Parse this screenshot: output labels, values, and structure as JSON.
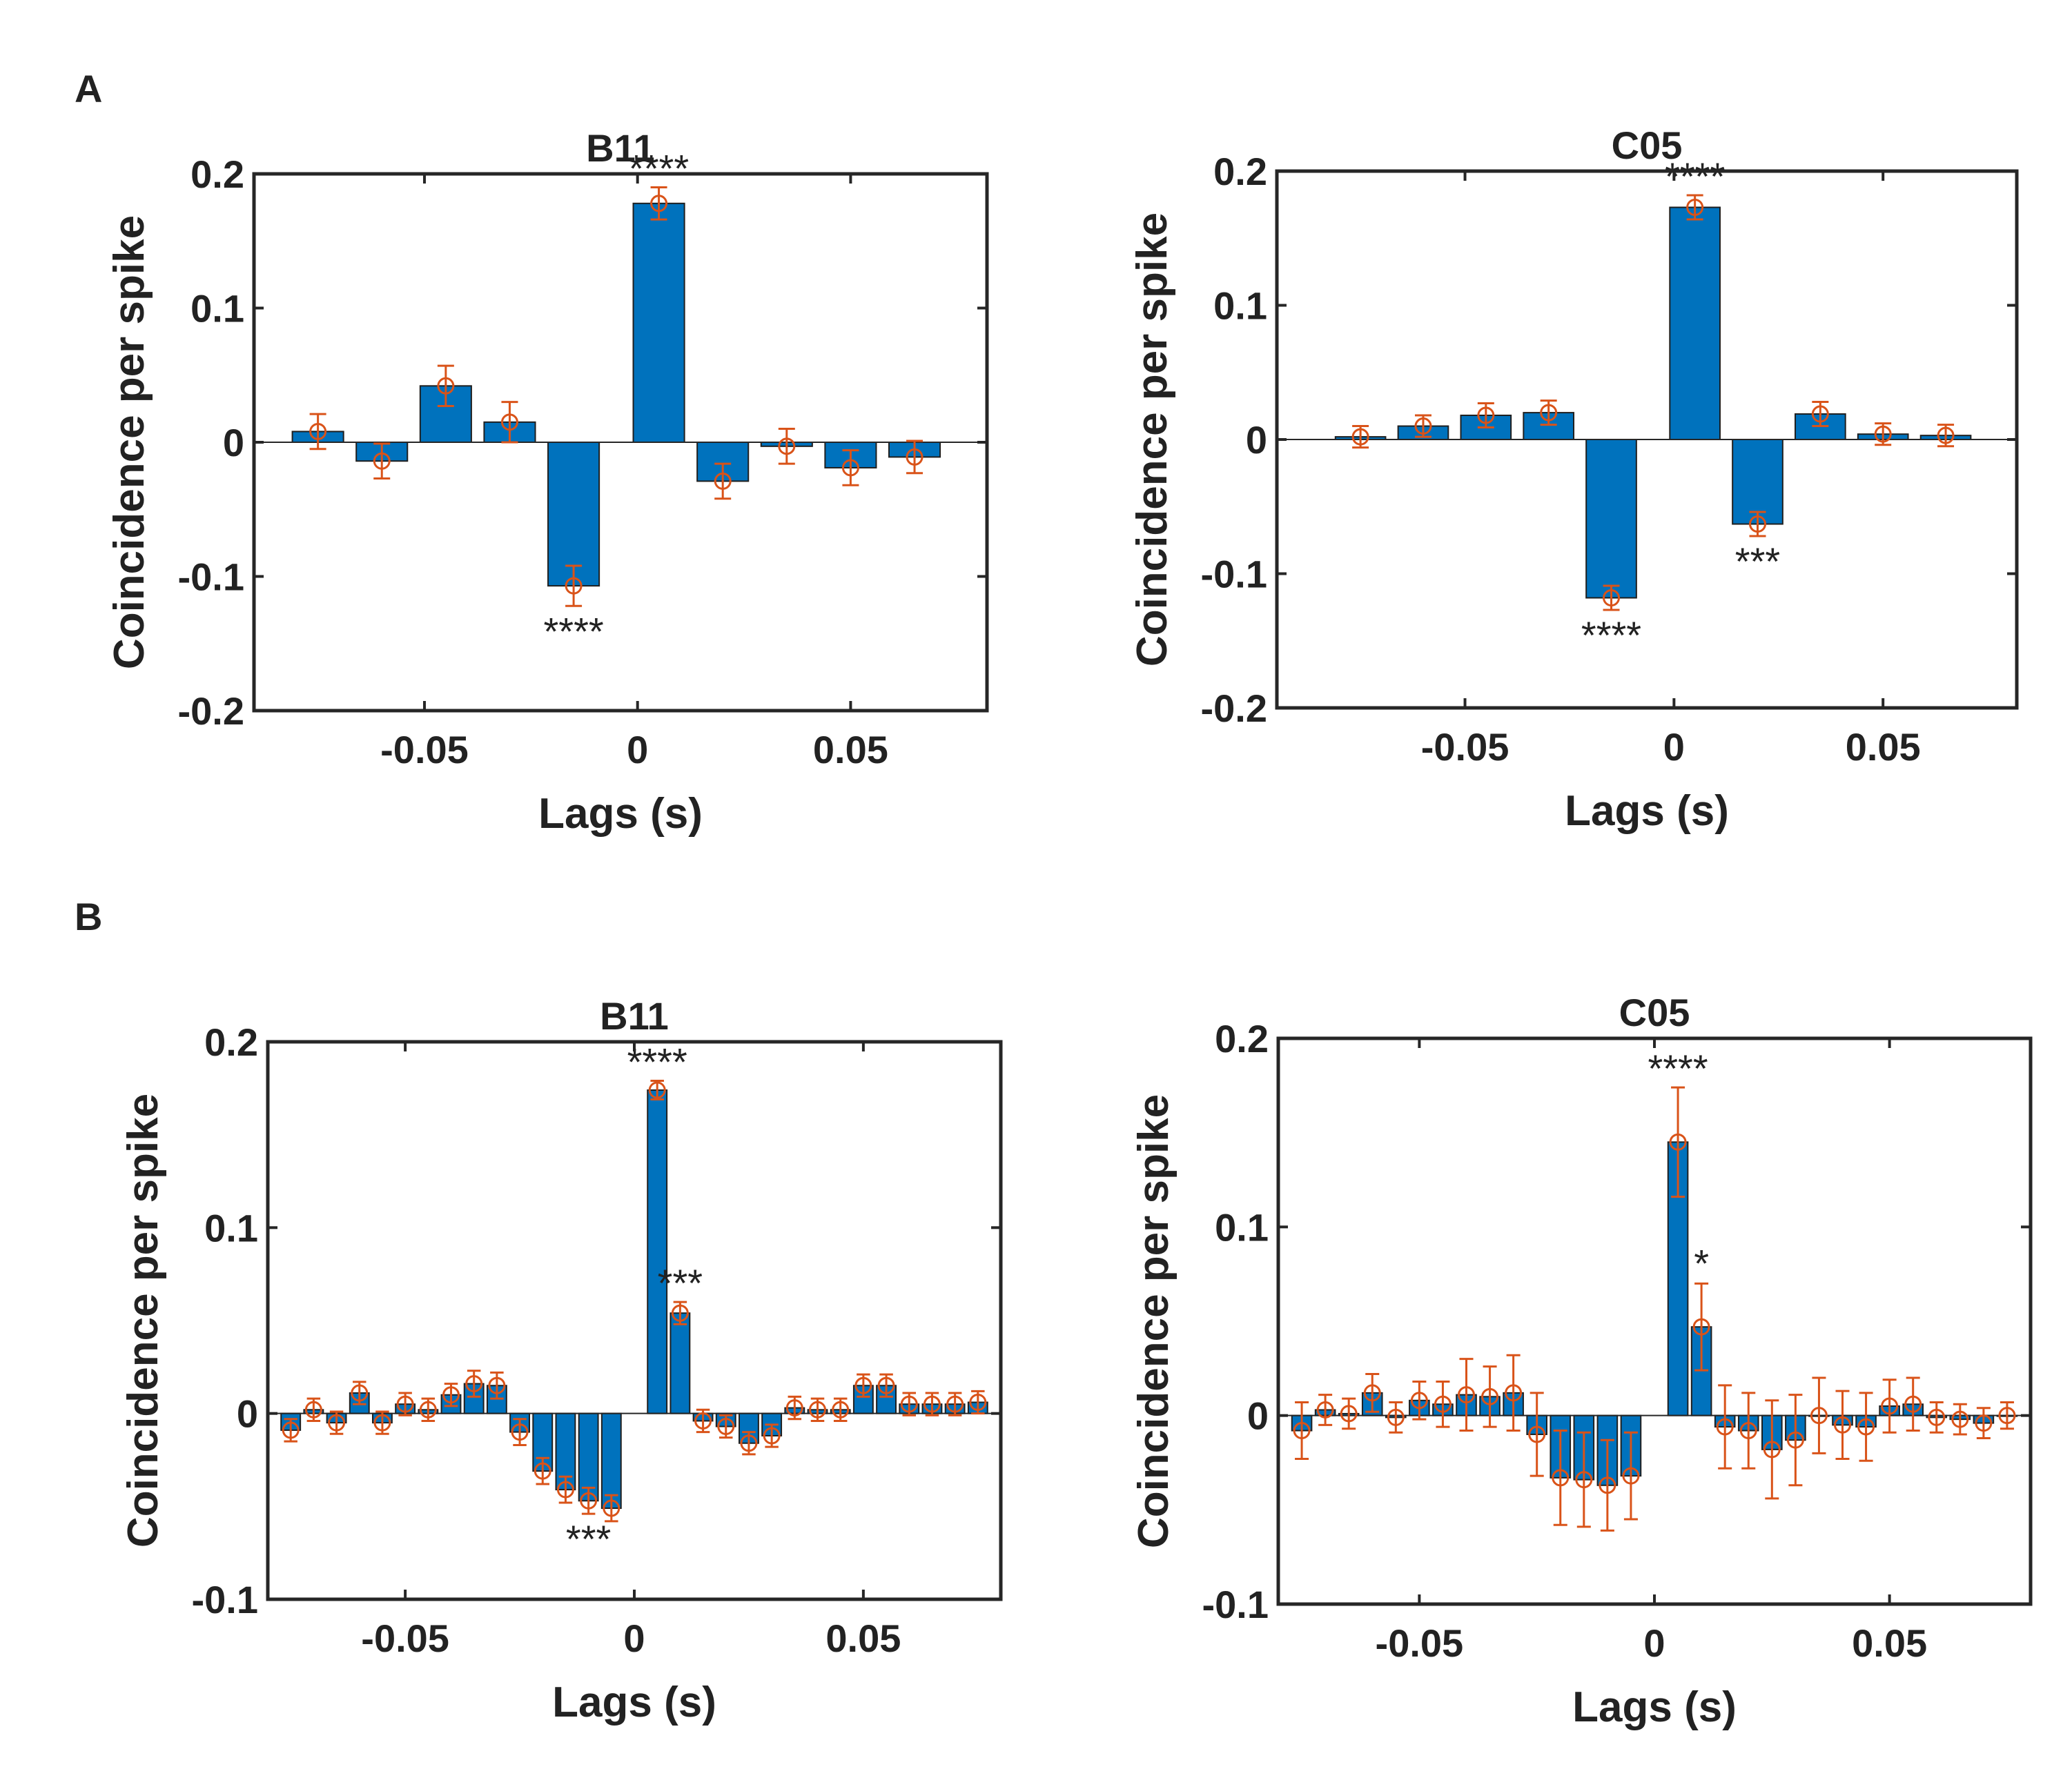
{
  "panels": [
    {
      "label": "A"
    },
    {
      "label": "B"
    }
  ],
  "chart_data": [
    {
      "type": "bar",
      "panel": "A",
      "title": "B11",
      "xlabel": "Lags (s)",
      "ylabel": "Coincidence per spike",
      "xlim": [
        -0.09,
        0.082
      ],
      "ylim": [
        -0.2,
        0.2
      ],
      "xticks": [
        -0.05,
        0,
        0.05
      ],
      "xtick_labels": [
        "-0.05",
        "0",
        "0.05"
      ],
      "yticks": [
        -0.2,
        -0.1,
        0,
        0.1,
        0.2
      ],
      "ytick_labels": [
        "-0.2",
        "-0.1",
        "0",
        "0.1",
        "0.2"
      ],
      "bar_width": 0.012,
      "bar_color": "#0072BD",
      "err_color": "#D95319",
      "x": [
        -0.075,
        -0.06,
        -0.045,
        -0.03,
        -0.015,
        0.005,
        0.02,
        0.035,
        0.05,
        0.065
      ],
      "values": [
        0.008,
        -0.014,
        0.042,
        0.015,
        -0.107,
        0.178,
        -0.029,
        -0.003,
        -0.019,
        -0.011
      ],
      "errors": [
        0.013,
        0.013,
        0.015,
        0.015,
        0.015,
        0.012,
        0.013,
        0.013,
        0.013,
        0.012
      ],
      "annotations": [
        {
          "x": 0.005,
          "text": "****",
          "position": "above"
        },
        {
          "x": -0.015,
          "text": "****",
          "position": "below"
        }
      ]
    },
    {
      "type": "bar",
      "panel": "A",
      "title": "C05",
      "xlabel": "Lags (s)",
      "ylabel": "Coincidence per spike",
      "xlim": [
        -0.095,
        0.082
      ],
      "ylim": [
        -0.2,
        0.2
      ],
      "xticks": [
        -0.05,
        0,
        0.05
      ],
      "xtick_labels": [
        "-0.05",
        "0",
        "0.05"
      ],
      "yticks": [
        -0.2,
        -0.1,
        0,
        0.1,
        0.2
      ],
      "ytick_labels": [
        "-0.2",
        "-0.1",
        "0",
        "0.1",
        "0.2"
      ],
      "bar_width": 0.012,
      "bar_color": "#0072BD",
      "err_color": "#D95319",
      "x": [
        -0.075,
        -0.06,
        -0.045,
        -0.03,
        -0.015,
        0.005,
        0.02,
        0.035,
        0.05,
        0.065
      ],
      "values": [
        0.002,
        0.01,
        0.018,
        0.02,
        -0.118,
        0.173,
        -0.063,
        0.019,
        0.004,
        0.003
      ],
      "errors": [
        0.008,
        0.008,
        0.009,
        0.009,
        0.009,
        0.009,
        0.009,
        0.009,
        0.008,
        0.008
      ],
      "annotations": [
        {
          "x": 0.005,
          "text": "****",
          "position": "above"
        },
        {
          "x": -0.015,
          "text": "****",
          "position": "below"
        },
        {
          "x": 0.02,
          "text": "***",
          "position": "below"
        }
      ]
    },
    {
      "type": "bar",
      "panel": "B",
      "title": "B11",
      "xlabel": "Lags (s)",
      "ylabel": "Coincidence per spike",
      "xlim": [
        -0.08,
        0.08
      ],
      "ylim": [
        -0.1,
        0.2
      ],
      "xticks": [
        -0.05,
        0,
        0.05
      ],
      "xtick_labels": [
        "-0.05",
        "0",
        "0.05"
      ],
      "yticks": [
        -0.1,
        0,
        0.1,
        0.2
      ],
      "ytick_labels": [
        "-0.1",
        "0",
        "0.1",
        "0.2"
      ],
      "bar_width": 0.0042,
      "bar_color": "#0072BD",
      "err_color": "#D95319",
      "x": [
        -0.075,
        -0.07,
        -0.065,
        -0.06,
        -0.055,
        -0.05,
        -0.045,
        -0.04,
        -0.035,
        -0.03,
        -0.025,
        -0.02,
        -0.015,
        -0.01,
        -0.005,
        0.005,
        0.01,
        0.015,
        0.02,
        0.025,
        0.03,
        0.035,
        0.04,
        0.045,
        0.05,
        0.055,
        0.06,
        0.065,
        0.07,
        0.075
      ],
      "values": [
        -0.009,
        0.002,
        -0.005,
        0.011,
        -0.005,
        0.005,
        0.002,
        0.01,
        0.016,
        0.015,
        -0.01,
        -0.031,
        -0.041,
        -0.047,
        -0.051,
        0.174,
        0.054,
        -0.004,
        -0.007,
        -0.016,
        -0.012,
        0.003,
        0.002,
        0.002,
        0.015,
        0.015,
        0.005,
        0.005,
        0.005,
        0.006
      ],
      "errors": [
        0.006,
        0.006,
        0.006,
        0.006,
        0.006,
        0.006,
        0.006,
        0.006,
        0.007,
        0.007,
        0.007,
        0.007,
        0.007,
        0.007,
        0.007,
        0.005,
        0.006,
        0.006,
        0.006,
        0.006,
        0.006,
        0.006,
        0.006,
        0.006,
        0.006,
        0.006,
        0.006,
        0.006,
        0.006,
        0.006
      ],
      "annotations": [
        {
          "x": 0.005,
          "text": "****",
          "position": "above"
        },
        {
          "x": 0.01,
          "text": "***",
          "position": "above"
        },
        {
          "x": -0.01,
          "text": "***",
          "position": "below"
        }
      ]
    },
    {
      "type": "bar",
      "panel": "B",
      "title": "C05",
      "xlabel": "Lags (s)",
      "ylabel": "Coincidence per spike",
      "xlim": [
        -0.08,
        0.08
      ],
      "ylim": [
        -0.1,
        0.2
      ],
      "xticks": [
        -0.05,
        0,
        0.05
      ],
      "xtick_labels": [
        "-0.05",
        "0",
        "0.05"
      ],
      "yticks": [
        -0.1,
        0,
        0.1,
        0.2
      ],
      "ytick_labels": [
        "-0.1",
        "0",
        "0.1",
        "0.2"
      ],
      "bar_width": 0.0042,
      "bar_color": "#0072BD",
      "err_color": "#D95319",
      "x": [
        -0.075,
        -0.07,
        -0.065,
        -0.06,
        -0.055,
        -0.05,
        -0.045,
        -0.04,
        -0.035,
        -0.03,
        -0.025,
        -0.02,
        -0.015,
        -0.01,
        -0.005,
        0.005,
        0.01,
        0.015,
        0.02,
        0.025,
        0.03,
        0.035,
        0.04,
        0.045,
        0.05,
        0.055,
        0.06,
        0.065,
        0.07,
        0.075
      ],
      "values": [
        -0.008,
        0.003,
        0.001,
        0.012,
        -0.001,
        0.008,
        0.006,
        0.011,
        0.01,
        0.012,
        -0.01,
        -0.033,
        -0.034,
        -0.037,
        -0.032,
        0.145,
        0.047,
        -0.006,
        -0.008,
        -0.018,
        -0.013,
        0.0,
        -0.005,
        -0.006,
        0.005,
        0.006,
        -0.001,
        -0.002,
        -0.004,
        0.0
      ],
      "errors": [
        0.015,
        0.008,
        0.008,
        0.01,
        0.008,
        0.01,
        0.012,
        0.019,
        0.016,
        0.02,
        0.022,
        0.025,
        0.025,
        0.024,
        0.023,
        0.029,
        0.023,
        0.022,
        0.02,
        0.026,
        0.024,
        0.02,
        0.018,
        0.018,
        0.014,
        0.014,
        0.008,
        0.008,
        0.008,
        0.007
      ],
      "annotations": [
        {
          "x": 0.005,
          "text": "****",
          "position": "above"
        },
        {
          "x": 0.01,
          "text": "*",
          "position": "above"
        }
      ]
    }
  ]
}
